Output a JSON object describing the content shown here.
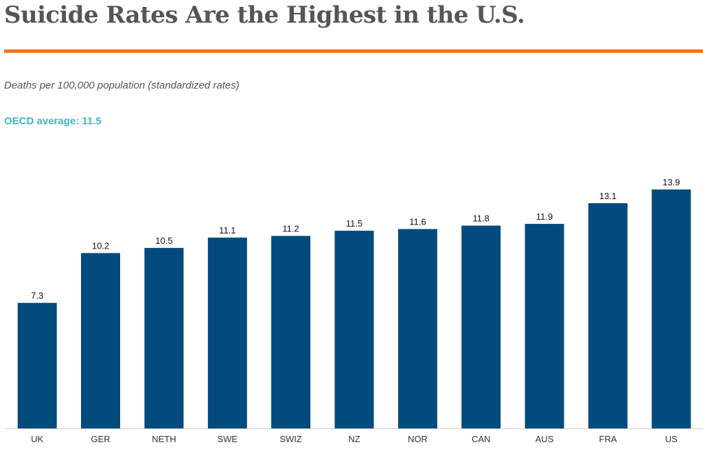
{
  "colors": {
    "title": "#555555",
    "rule": "#e87722",
    "bar": "#034b7c",
    "note": "#3fb8c1",
    "axis": "#cccccc"
  },
  "header": {
    "title": "Suicide Rates Are the Highest in the U.S.",
    "subtitle": "Deaths per 100,000 population (standardized rates)",
    "note": "OECD average: 11.5"
  },
  "chart_data": {
    "type": "bar",
    "title": "Suicide Rates Are the Highest in the U.S.",
    "ylabel": "Deaths per 100,000 population (standardized rates)",
    "xlabel": "",
    "categories": [
      "UK",
      "GER",
      "NETH",
      "SWE",
      "SWIZ",
      "NZ",
      "NOR",
      "CAN",
      "AUS",
      "FRA",
      "US"
    ],
    "values": [
      7.3,
      10.2,
      10.5,
      11.1,
      11.2,
      11.5,
      11.6,
      11.8,
      11.9,
      13.1,
      13.9
    ],
    "value_labels": [
      "7.3",
      "10.2",
      "10.5",
      "11.1",
      "11.2",
      "11.5",
      "11.6",
      "11.8",
      "11.9",
      "13.1",
      "13.9"
    ],
    "ylim": [
      0,
      13.9
    ],
    "grid": false,
    "annotations": [
      "OECD average: 11.5"
    ]
  }
}
